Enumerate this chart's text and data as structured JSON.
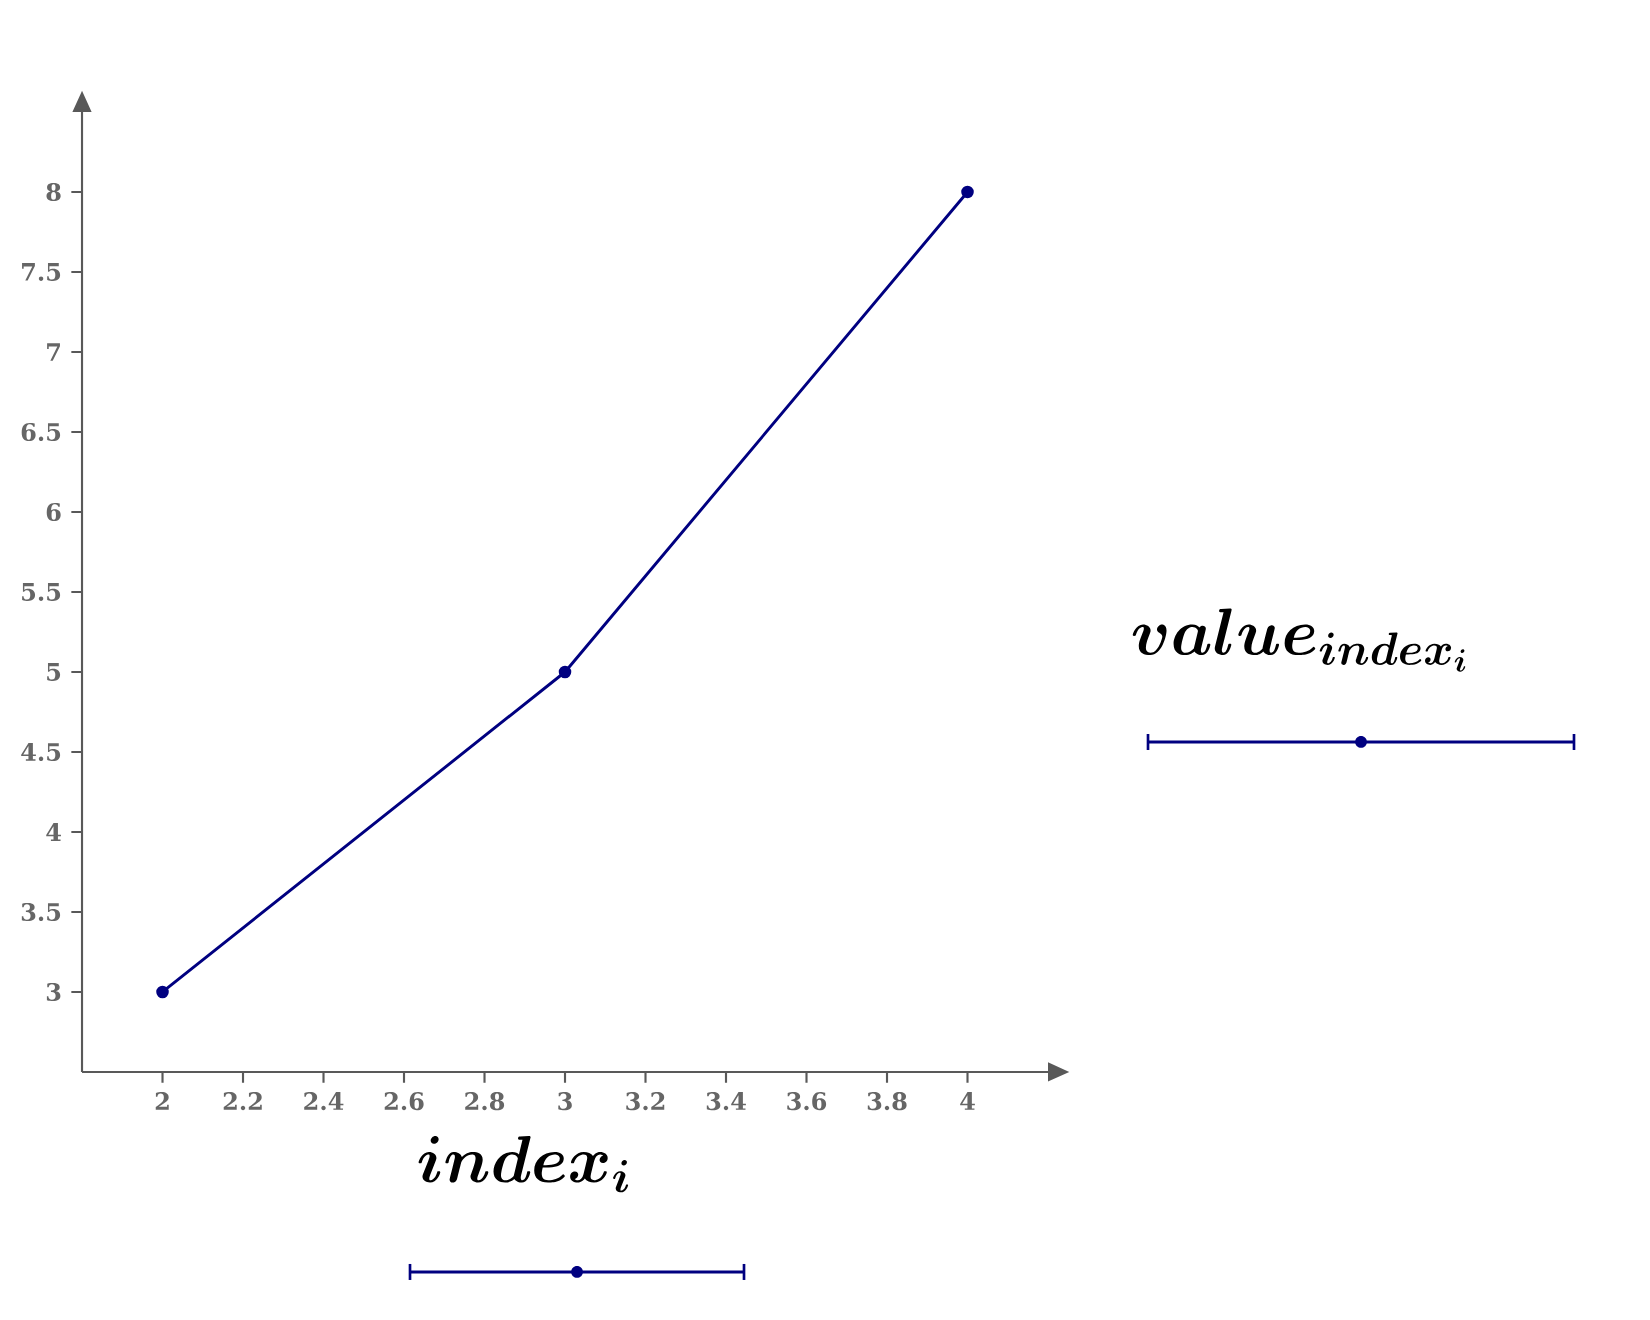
{
  "chart_data": {
    "type": "line",
    "xlabel": "\\boldsymbol{index_{i}}",
    "ylabel": "\\boldsymbol{value_{index_{i}}}",
    "x": [
      2,
      3,
      4
    ],
    "series": [
      {
        "color": "#000080",
        "values": [
          3,
          5,
          8
        ]
      }
    ],
    "xlim": [
      1.8,
      4.2
    ],
    "ylim": [
      2.5,
      8.5
    ],
    "xticks": [
      2,
      2.2,
      2.4,
      2.6,
      2.8,
      3,
      3.2,
      3.4,
      3.6,
      3.8,
      4
    ],
    "yticks": [
      3,
      3.5,
      4,
      4.5,
      5,
      5.5,
      6,
      6.5,
      7,
      7.5,
      8
    ],
    "grid": false,
    "marker": "circle",
    "line_style": "solid"
  }
}
